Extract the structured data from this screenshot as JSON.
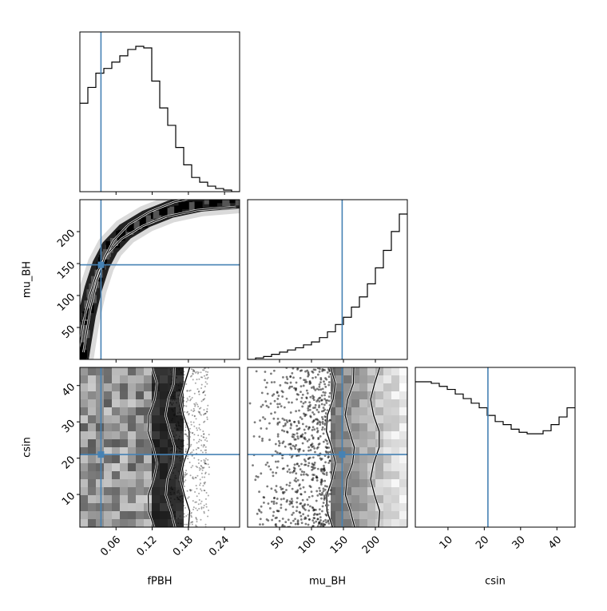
{
  "chart_data": {
    "type": "corner",
    "parameters": [
      {
        "name": "fPBH",
        "xlabel": "fPBH",
        "range": [
          0.0,
          0.265
        ],
        "ticks": [
          0.06,
          0.12,
          0.18,
          0.24
        ],
        "tick_labels": [
          "0.06",
          "0.12",
          "0.18",
          "0.24"
        ],
        "truth": 0.035
      },
      {
        "name": "mu_BH",
        "xlabel": "mu_BH",
        "ylabel": "mu_BH",
        "range": [
          0,
          250
        ],
        "ticks": [
          50,
          100,
          150,
          200
        ],
        "tick_labels": [
          "50",
          "100",
          "150",
          "200"
        ],
        "truth": 148
      },
      {
        "name": "csin",
        "xlabel": "csin",
        "ylabel": "csin",
        "range": [
          1,
          45
        ],
        "ticks": [
          10,
          20,
          30,
          40
        ],
        "tick_labels": [
          "10",
          "20",
          "30",
          "40"
        ],
        "truth": 21
      }
    ],
    "histograms": {
      "fPBH": {
        "bin_edges": [
          0.0,
          0.01325,
          0.0265,
          0.03975,
          0.053,
          0.06625,
          0.0795,
          0.09275,
          0.106,
          0.11925,
          0.1325,
          0.14575,
          0.159,
          0.17225,
          0.1855,
          0.19875,
          0.212,
          0.22525,
          0.2385,
          0.25175,
          0.265
        ],
        "counts": [
          0.56,
          0.66,
          0.75,
          0.78,
          0.82,
          0.86,
          0.9,
          0.92,
          0.91,
          0.7,
          0.53,
          0.42,
          0.28,
          0.17,
          0.09,
          0.06,
          0.035,
          0.02,
          0.01,
          0.0
        ]
      },
      "mu_BH": {
        "bin_edges": [
          0,
          12.5,
          25,
          37.5,
          50,
          62.5,
          75,
          87.5,
          100,
          112.5,
          125,
          137.5,
          150,
          162.5,
          175,
          187.5,
          200,
          212.5,
          225,
          237.5,
          250
        ],
        "counts": [
          0.0,
          0.01,
          0.02,
          0.035,
          0.05,
          0.065,
          0.08,
          0.1,
          0.12,
          0.15,
          0.19,
          0.24,
          0.29,
          0.36,
          0.43,
          0.52,
          0.63,
          0.75,
          0.88,
          1.0
        ]
      },
      "csin": {
        "bin_edges": [
          1,
          3.2,
          5.4,
          7.6,
          9.8,
          12,
          14.2,
          16.4,
          18.6,
          20.8,
          23,
          25.2,
          27.4,
          29.6,
          31.8,
          34,
          36.2,
          38.4,
          40.6,
          42.8,
          45
        ],
        "counts": [
          0.95,
          0.95,
          0.94,
          0.92,
          0.9,
          0.87,
          0.84,
          0.81,
          0.78,
          0.73,
          0.69,
          0.67,
          0.64,
          0.62,
          0.61,
          0.61,
          0.63,
          0.67,
          0.72,
          0.78
        ]
      }
    },
    "contours_2d": {
      "mu_BH_vs_fPBH": {
        "x_param": "fPBH",
        "y_param": "mu_BH",
        "ridge": [
          [
            0.0,
            0
          ],
          [
            0.005,
            30
          ],
          [
            0.012,
            70
          ],
          [
            0.022,
            110
          ],
          [
            0.035,
            148
          ],
          [
            0.05,
            175
          ],
          [
            0.075,
            200
          ],
          [
            0.11,
            220
          ],
          [
            0.15,
            235
          ],
          [
            0.2,
            245
          ],
          [
            0.265,
            250
          ]
        ]
      },
      "csin_vs_fPBH": {
        "x_param": "fPBH",
        "y_param": "csin",
        "contour_edges_x": [
          0.12,
          0.15,
          0.175
        ]
      },
      "csin_vs_mu_BH": {
        "x_param": "mu_BH",
        "y_param": "csin",
        "contour_edges_x": [
          130,
          160,
          200
        ]
      }
    },
    "truth_marker_color": "#4682b4",
    "grid": false,
    "legend": "none"
  }
}
